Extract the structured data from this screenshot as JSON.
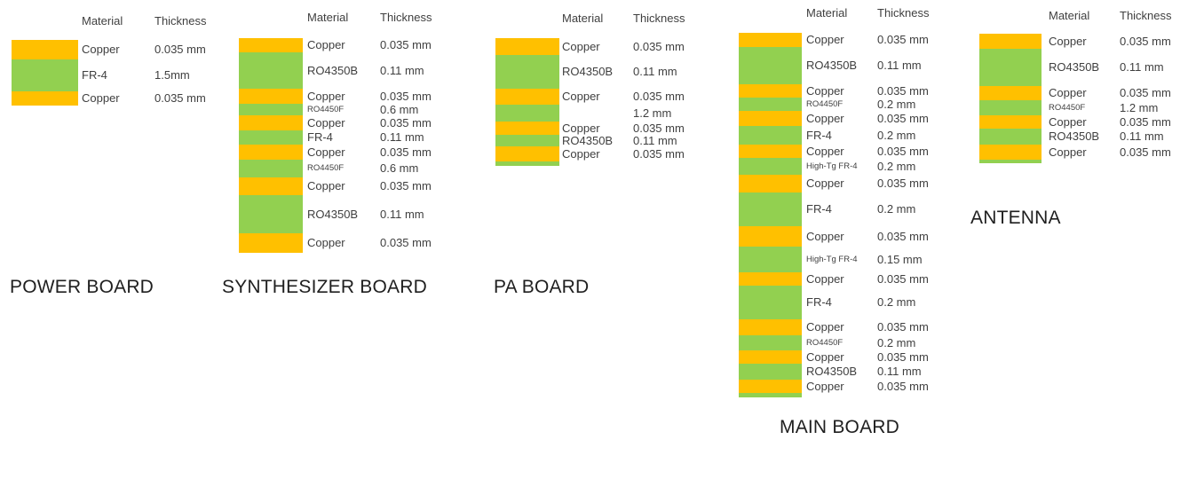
{
  "colors": {
    "copper": "#FFC000",
    "dielectric": "#92D050",
    "label_text": "#3f3f3f",
    "title_text": "#1f1f1f",
    "background": "#ffffff"
  },
  "column_headers": {
    "material": "Material",
    "thickness": "Thickness"
  },
  "boards": [
    {
      "id": "power-board",
      "title": "POWER BOARD",
      "layers": [
        {
          "material": "Copper",
          "thickness": "0.035 mm",
          "type": "copper"
        },
        {
          "material": "FR-4",
          "thickness": "1.5mm",
          "type": "dielectric"
        },
        {
          "material": "Copper",
          "thickness": "0.035 mm",
          "type": "copper"
        }
      ]
    },
    {
      "id": "synthesizer-board",
      "title": "SYNTHESIZER BOARD",
      "layers": [
        {
          "material": "Copper",
          "thickness": "0.035 mm",
          "type": "copper"
        },
        {
          "material": "RO4350B",
          "thickness": "0.11 mm",
          "type": "dielectric"
        },
        {
          "material": "Copper",
          "thickness": "0.035 mm",
          "type": "copper"
        },
        {
          "material": "RO4450F",
          "thickness": "0.6 mm",
          "type": "dielectric"
        },
        {
          "material": "Copper",
          "thickness": "0.035 mm",
          "type": "copper"
        },
        {
          "material": "FR-4",
          "thickness": "0.11 mm",
          "type": "dielectric"
        },
        {
          "material": "Copper",
          "thickness": "0.035 mm",
          "type": "copper"
        },
        {
          "material": "RO4450F",
          "thickness": "0.6 mm",
          "type": "dielectric"
        },
        {
          "material": "Copper",
          "thickness": "0.035 mm",
          "type": "copper"
        },
        {
          "material": "RO4350B",
          "thickness": "0.11 mm",
          "type": "dielectric"
        },
        {
          "material": "Copper",
          "thickness": "0.035 mm",
          "type": "copper"
        }
      ]
    },
    {
      "id": "pa-board",
      "title": "PA BOARD",
      "layers": [
        {
          "material": "Copper",
          "thickness": "0.035 mm",
          "type": "copper"
        },
        {
          "material": "RO4350B",
          "thickness": "0.11 mm",
          "type": "dielectric"
        },
        {
          "material": "Copper",
          "thickness": "0.035 mm",
          "type": "copper"
        },
        {
          "material": "",
          "thickness": "1.2 mm",
          "type": "dielectric"
        },
        {
          "material": "Copper",
          "thickness": "0.035 mm",
          "type": "copper"
        },
        {
          "material": "RO4350B",
          "thickness": "0.11 mm",
          "type": "dielectric"
        },
        {
          "material": "Copper",
          "thickness": "0.035 mm",
          "type": "copper"
        },
        {
          "material": "",
          "thickness": "",
          "type": "dielectric"
        }
      ]
    },
    {
      "id": "main-board",
      "title": "MAIN BOARD",
      "layers": [
        {
          "material": "Copper",
          "thickness": "0.035 mm",
          "type": "copper"
        },
        {
          "material": "RO4350B",
          "thickness": "0.11 mm",
          "type": "dielectric"
        },
        {
          "material": "Copper",
          "thickness": "0.035  mm",
          "type": "copper"
        },
        {
          "material": "RO4450F",
          "thickness": "0.2 mm",
          "type": "dielectric"
        },
        {
          "material": "Copper",
          "thickness": "0.035 mm",
          "type": "copper"
        },
        {
          "material": "FR-4",
          "thickness": "0.2 mm",
          "type": "dielectric"
        },
        {
          "material": "Copper",
          "thickness": "0.035 mm",
          "type": "copper"
        },
        {
          "material": "High-Tg FR-4",
          "thickness": "0.2 mm",
          "type": "dielectric"
        },
        {
          "material": "Copper",
          "thickness": "0.035 mm",
          "type": "copper"
        },
        {
          "material": "FR-4",
          "thickness": "0.2 mm",
          "type": "dielectric"
        },
        {
          "material": "Copper",
          "thickness": "0.035 mm",
          "type": "copper"
        },
        {
          "material": "High-Tg FR-4",
          "thickness": "0.15 mm",
          "type": "dielectric"
        },
        {
          "material": "Copper",
          "thickness": "0.035 mm",
          "type": "copper"
        },
        {
          "material": "FR-4",
          "thickness": "0.2 mm",
          "type": "dielectric"
        },
        {
          "material": "Copper",
          "thickness": "0.035 mm",
          "type": "copper"
        },
        {
          "material": "RO4450F",
          "thickness": "0.2 mm",
          "type": "dielectric"
        },
        {
          "material": "Copper",
          "thickness": "0.035 mm",
          "type": "copper"
        },
        {
          "material": "RO4350B",
          "thickness": "0.11 mm",
          "type": "dielectric"
        },
        {
          "material": "Copper",
          "thickness": "0.035 mm",
          "type": "copper"
        },
        {
          "material": "",
          "thickness": "",
          "type": "dielectric"
        }
      ]
    },
    {
      "id": "antenna",
      "title": "ANTENNA",
      "layers": [
        {
          "material": "Copper",
          "thickness": "0.035 mm",
          "type": "copper"
        },
        {
          "material": "RO4350B",
          "thickness": "0.11 mm",
          "type": "dielectric"
        },
        {
          "material": "Copper",
          "thickness": "0.035 mm",
          "type": "copper"
        },
        {
          "material": "RO4450F",
          "thickness": "1.2 mm",
          "type": "dielectric"
        },
        {
          "material": "Copper",
          "thickness": "0.035 mm",
          "type": "copper"
        },
        {
          "material": "RO4350B",
          "thickness": "0.11 mm",
          "type": "dielectric"
        },
        {
          "material": "Copper",
          "thickness": "0.035 mm",
          "type": "copper"
        },
        {
          "material": "",
          "thickness": "",
          "type": "dielectric"
        }
      ]
    }
  ]
}
